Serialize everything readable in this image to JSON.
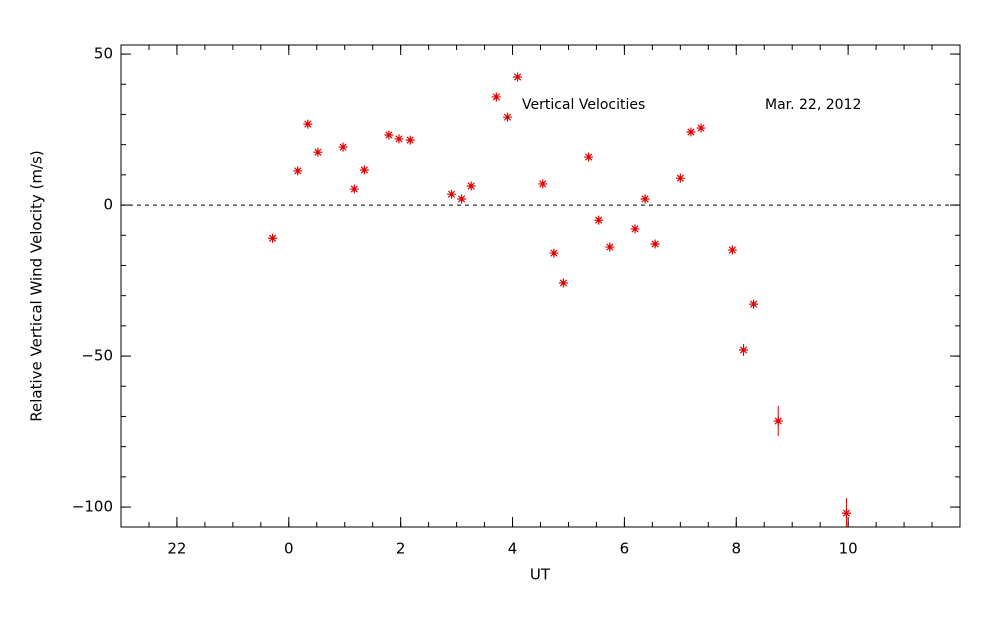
{
  "chart_data": {
    "type": "scatter",
    "annotations": [
      "Vertical Velocities",
      "Mar. 22, 2012"
    ],
    "xlabel": "UT",
    "ylabel": "Relative Vertical Wind Velocity (m/s)",
    "xlim": [
      -3,
      12
    ],
    "ylim": [
      -106.6,
      53
    ],
    "xticks": [
      {
        "value": -2,
        "label": "22"
      },
      0,
      2,
      4,
      6,
      8,
      10
    ],
    "yticks": [
      {
        "value": -100,
        "label": "−100"
      },
      {
        "value": -50,
        "label": "−50"
      },
      0,
      50
    ],
    "xminor": 4,
    "yminor": 5,
    "hline": 0,
    "series": [
      {
        "color": "#e00000",
        "x": [
          -0.29,
          0.16,
          0.34,
          0.52,
          0.97,
          1.17,
          1.35,
          1.79,
          1.97,
          2.17,
          2.91,
          3.09,
          3.26,
          3.71,
          3.91,
          4.09,
          4.54,
          4.74,
          4.91,
          5.36,
          5.54,
          5.74,
          6.19,
          6.37,
          6.55,
          7.0,
          7.19,
          7.37,
          7.93,
          8.13,
          8.31,
          8.75,
          9.97
        ],
        "values": [
          -11,
          11.3,
          26.8,
          17.5,
          19.2,
          5.3,
          11.6,
          23.2,
          21.9,
          21.5,
          3.6,
          2.0,
          6.3,
          35.8,
          29.1,
          42.4,
          7.0,
          -15.9,
          -25.8,
          15.9,
          -5.0,
          -13.9,
          -7.9,
          2.0,
          -12.9,
          8.9,
          24.2,
          25.5,
          -14.9,
          -48.0,
          -32.8,
          -71.5,
          -102.0
        ],
        "errors": [
          1,
          1,
          1,
          1,
          1,
          1,
          1,
          1,
          1,
          1,
          1,
          1,
          1,
          1,
          1,
          1,
          1,
          1,
          1,
          1,
          1,
          1,
          1,
          1,
          1,
          1,
          1,
          1,
          1,
          2,
          1,
          5,
          5
        ]
      }
    ]
  }
}
